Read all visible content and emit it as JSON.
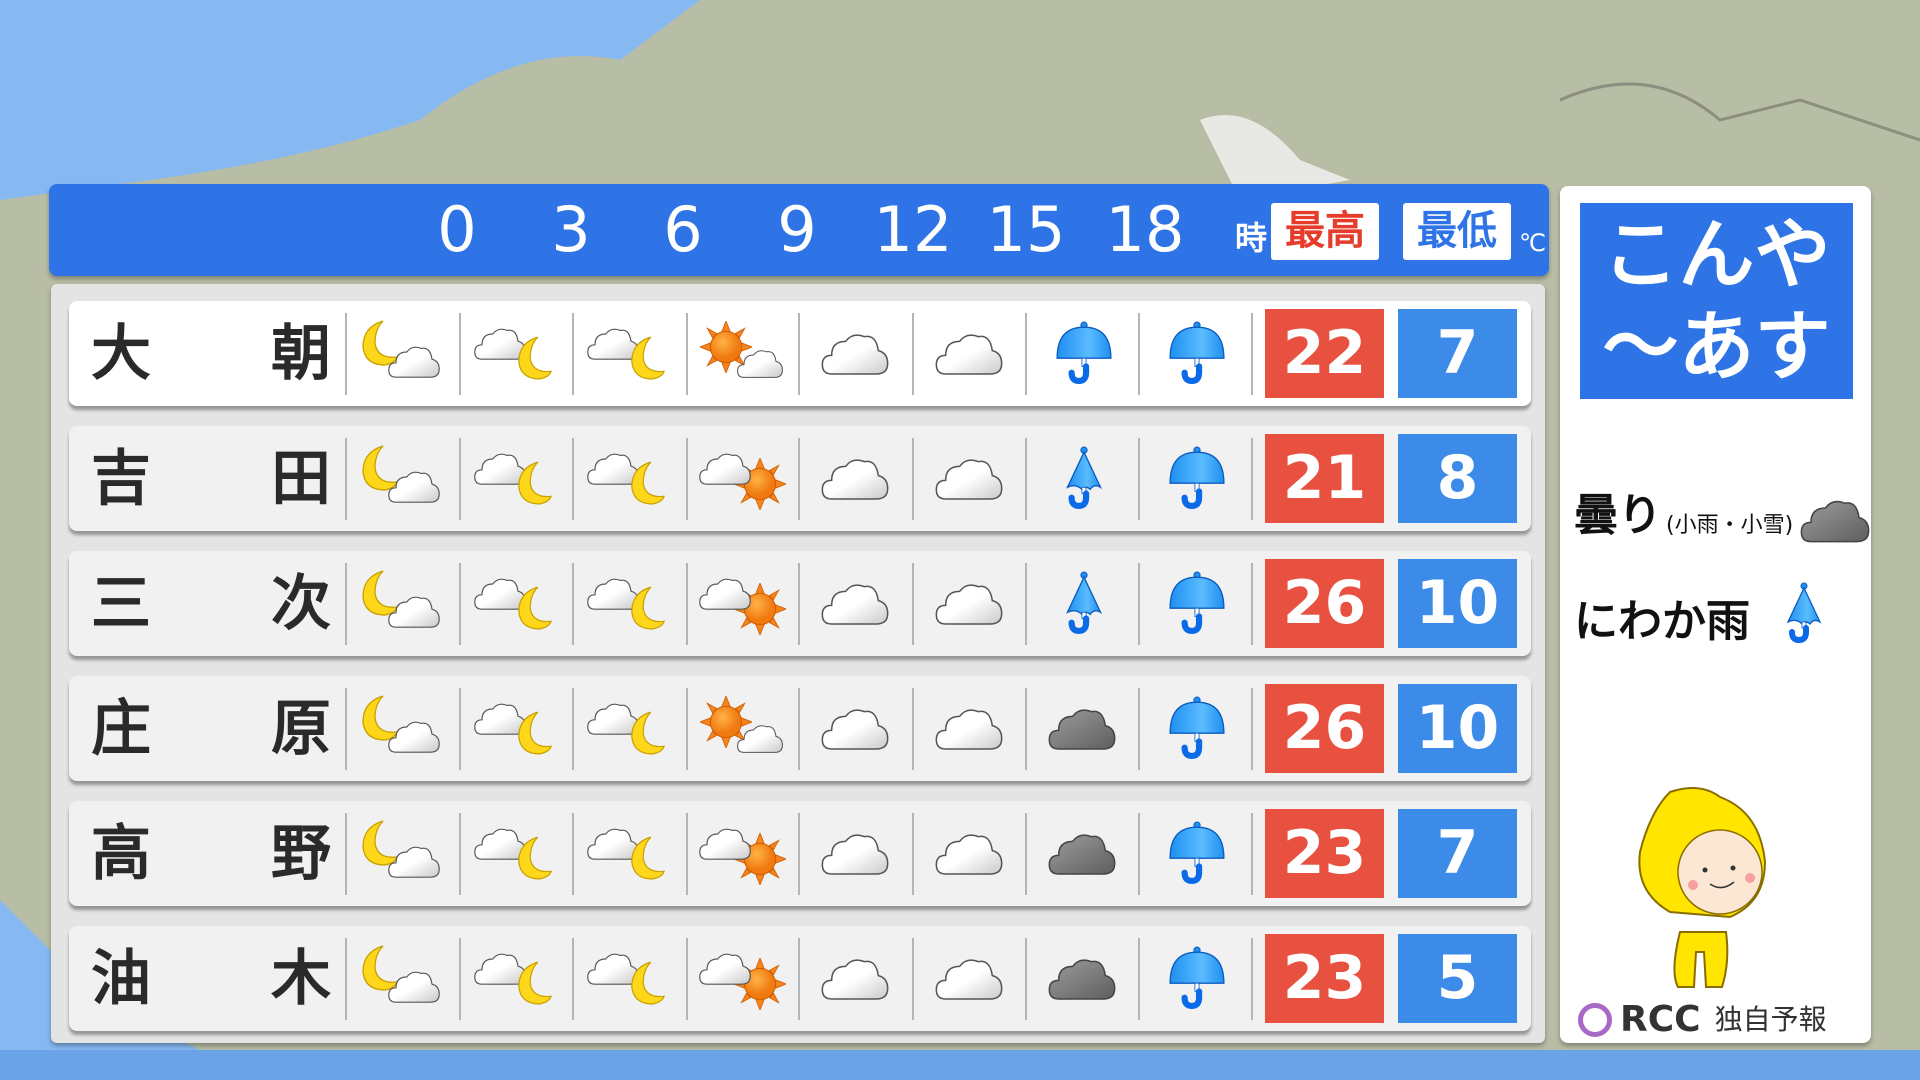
{
  "header": {
    "hours": [
      "0",
      "3",
      "6",
      "9",
      "12",
      "15",
      "18"
    ],
    "hour_unit": "時",
    "high_label": "最高",
    "low_label": "最低",
    "temp_unit": "℃"
  },
  "colors": {
    "header_blue": "#2f74e6",
    "high_red": "#e8513f",
    "low_blue": "#3d8be8",
    "high_label_text": "#e53c2c",
    "low_label_text": "#2f74e6"
  },
  "rows": [
    {
      "name_left": "大",
      "name_right": "朝",
      "icons": [
        "moon-cloud",
        "cloud-moon",
        "cloud-moon",
        "sun-cloud",
        "cloud",
        "cloud",
        "umbrella",
        "umbrella"
      ],
      "high": "22",
      "low": "7"
    },
    {
      "name_left": "吉",
      "name_right": "田",
      "icons": [
        "moon-cloud",
        "cloud-moon",
        "cloud-moon",
        "cloud-sun",
        "cloud",
        "cloud",
        "shower-umbrella",
        "umbrella"
      ],
      "high": "21",
      "low": "8"
    },
    {
      "name_left": "三",
      "name_right": "次",
      "icons": [
        "moon-cloud",
        "cloud-moon",
        "cloud-moon",
        "cloud-sun",
        "cloud",
        "cloud",
        "shower-umbrella",
        "umbrella"
      ],
      "high": "26",
      "low": "10"
    },
    {
      "name_left": "庄",
      "name_right": "原",
      "icons": [
        "moon-cloud",
        "cloud-moon",
        "cloud-moon",
        "sun-cloud",
        "cloud",
        "cloud",
        "dark-cloud",
        "umbrella"
      ],
      "high": "26",
      "low": "10"
    },
    {
      "name_left": "高",
      "name_right": "野",
      "icons": [
        "moon-cloud",
        "cloud-moon",
        "cloud-moon",
        "cloud-sun",
        "cloud",
        "cloud",
        "dark-cloud",
        "umbrella"
      ],
      "high": "23",
      "low": "7"
    },
    {
      "name_left": "油",
      "name_right": "木",
      "icons": [
        "moon-cloud",
        "cloud-moon",
        "cloud-moon",
        "cloud-sun",
        "cloud",
        "cloud",
        "dark-cloud",
        "umbrella"
      ],
      "high": "23",
      "low": "5"
    }
  ],
  "side": {
    "title_line1": "こんや",
    "title_line2": "〜あす",
    "legend": [
      {
        "label": "曇り",
        "note": "(小雨・小雪)",
        "icon": "dark-cloud"
      },
      {
        "label": "にわか雨",
        "note": "",
        "icon": "shower-umbrella"
      }
    ],
    "logo_text": "RCC",
    "forecast_label": "独自予報"
  }
}
